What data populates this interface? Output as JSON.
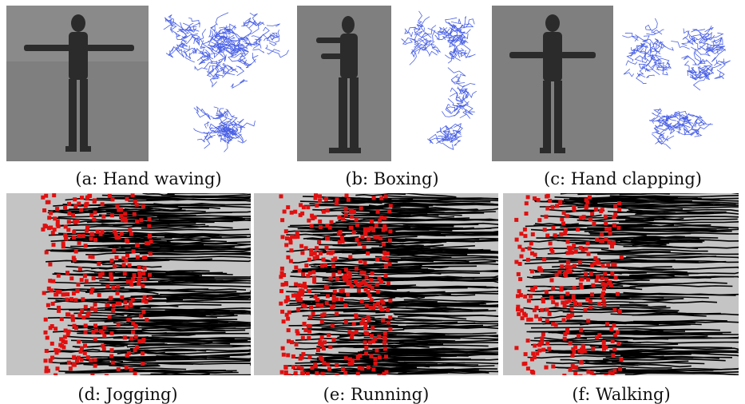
{
  "figure": {
    "panels": [
      {
        "id": "a",
        "caption": "(a: Hand waving)",
        "kind": "frame+flow"
      },
      {
        "id": "b",
        "caption": "(b: Boxing)",
        "kind": "frame+flow"
      },
      {
        "id": "c",
        "caption": "(c: Hand clapping)",
        "kind": "frame+flow"
      },
      {
        "id": "d",
        "caption": "(d: Jogging)",
        "kind": "trajectories"
      },
      {
        "id": "e",
        "caption": "(e: Running)",
        "kind": "trajectories"
      },
      {
        "id": "f",
        "caption": "(f: Walking)",
        "kind": "trajectories"
      }
    ],
    "colors": {
      "photo_bg": "#7d7d7d",
      "flow_stroke": "#1f3fe0",
      "track_bg": "#c4c4c4",
      "trajectory": "#000000",
      "keypoint": "#e01010"
    }
  }
}
